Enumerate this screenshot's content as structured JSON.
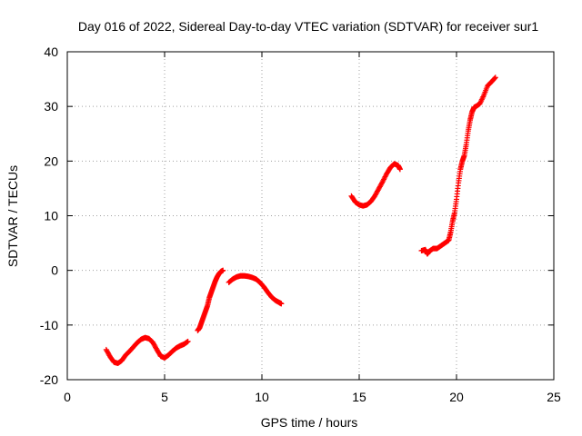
{
  "chart_data": {
    "type": "scatter",
    "title": "Day 016 of 2022, Sidereal Day-to-day VTEC variation (SDTVAR) for receiver sur1",
    "xlabel": "GPS time / hours",
    "ylabel": "SDTVAR / TECUs",
    "xlim": [
      0,
      25
    ],
    "ylim": [
      -20,
      40
    ],
    "xticks": [
      "0",
      "5",
      "10",
      "15",
      "20",
      "25"
    ],
    "yticks": [
      "-20",
      "-10",
      "0",
      "10",
      "20",
      "30",
      "40"
    ],
    "grid": true,
    "marker": "plus",
    "color": "#ff0000",
    "segments": [
      {
        "x": [
          2.0,
          2.2,
          2.4,
          2.6,
          2.8,
          3.0,
          3.2,
          3.4,
          3.6,
          3.8,
          4.0,
          4.2,
          4.4,
          4.6,
          4.8,
          5.0,
          5.2,
          5.4,
          5.6,
          5.8,
          6.0,
          6.2
        ],
        "y": [
          -14.5,
          -15.8,
          -16.8,
          -17.0,
          -16.5,
          -15.5,
          -14.8,
          -14.0,
          -13.2,
          -12.6,
          -12.3,
          -12.5,
          -13.2,
          -14.5,
          -15.7,
          -16.0,
          -15.5,
          -14.8,
          -14.2,
          -13.8,
          -13.5,
          -13.0
        ]
      },
      {
        "x": [
          6.7,
          6.8,
          6.9,
          7.0,
          7.1,
          7.2,
          7.3,
          7.4,
          7.5,
          7.6,
          7.7,
          7.8,
          7.9,
          8.0
        ],
        "y": [
          -11.0,
          -10.5,
          -9.5,
          -8.5,
          -7.5,
          -6.5,
          -5.0,
          -4.0,
          -3.0,
          -2.0,
          -1.2,
          -0.6,
          -0.2,
          0.0
        ]
      },
      {
        "x": [
          8.3,
          8.5,
          8.7,
          8.9,
          9.1,
          9.3,
          9.5,
          9.7,
          9.9,
          10.1,
          10.3,
          10.5,
          10.7,
          10.9,
          11.0
        ],
        "y": [
          -2.2,
          -1.6,
          -1.2,
          -1.0,
          -1.0,
          -1.1,
          -1.3,
          -1.6,
          -2.2,
          -3.0,
          -4.0,
          -4.9,
          -5.5,
          -5.9,
          -6.1
        ]
      },
      {
        "x": [
          14.6,
          14.8,
          15.0,
          15.2,
          15.4,
          15.6,
          15.8,
          16.0,
          16.2,
          16.4,
          16.6,
          16.8,
          17.0,
          17.1
        ],
        "y": [
          13.6,
          12.5,
          12.0,
          11.8,
          12.0,
          12.6,
          13.6,
          14.9,
          16.2,
          17.6,
          18.8,
          19.5,
          19.2,
          18.5
        ]
      },
      {
        "x": [
          18.2,
          18.4,
          18.5,
          18.6,
          18.8,
          19.0,
          19.2,
          19.4,
          19.6,
          19.7,
          19.8,
          19.9,
          20.0,
          20.1,
          20.2,
          20.3,
          20.4,
          20.5,
          20.6,
          20.7,
          20.8,
          20.9,
          21.0,
          21.2,
          21.4,
          21.6,
          21.8,
          22.0
        ],
        "y": [
          3.6,
          3.8,
          3.0,
          3.5,
          4.0,
          4.0,
          4.5,
          5.0,
          5.5,
          7.0,
          9.0,
          10.5,
          13.0,
          16.0,
          18.5,
          20.0,
          21.0,
          23.0,
          25.5,
          27.5,
          29.0,
          29.8,
          30.0,
          30.5,
          32.0,
          33.8,
          34.5,
          35.3
        ]
      }
    ]
  }
}
